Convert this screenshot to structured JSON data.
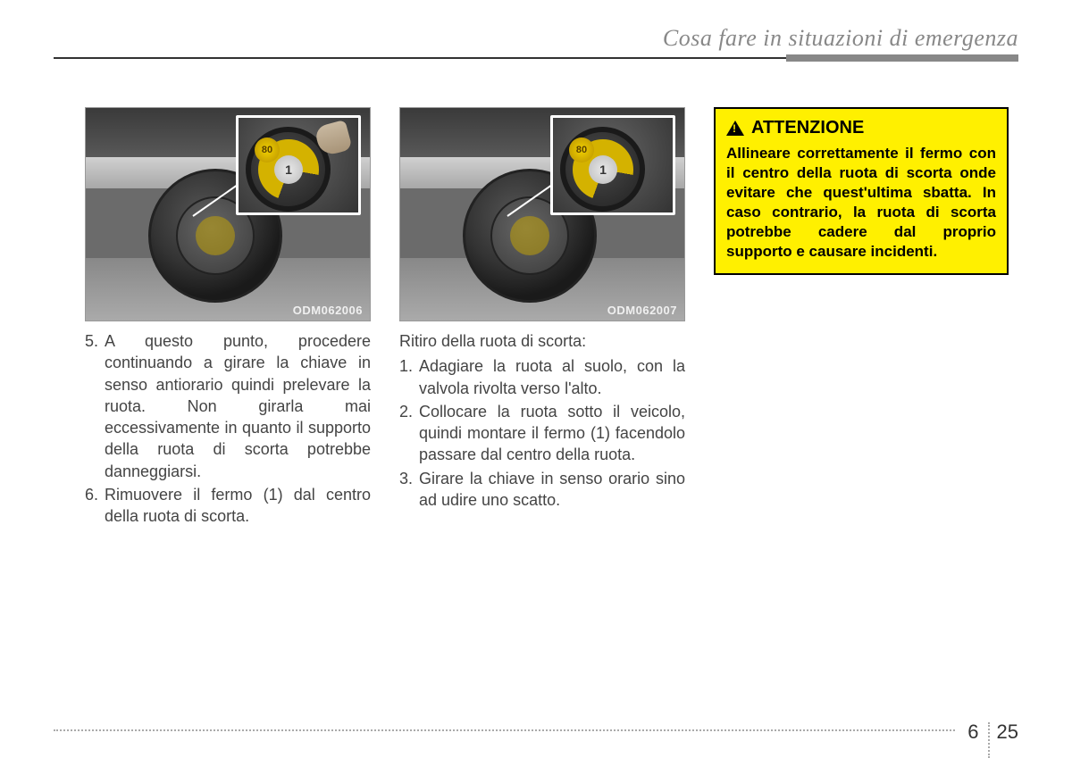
{
  "header": {
    "title": "Cosa fare in situazioni di emergenza"
  },
  "col1": {
    "fig_code": "ODM062006",
    "inset_center": "1",
    "inset_badge": "80",
    "items": [
      {
        "n": "5.",
        "text": "A questo punto, procedere continuando a girare la chiave in senso antiorario quindi prelevare la ruota. Non girarla mai eccessivamente in quanto il supporto della ruota di scorta potrebbe danneggiarsi."
      },
      {
        "n": "6.",
        "text": "Rimuovere il fermo (1) dal centro della ruota di scorta."
      }
    ]
  },
  "col2": {
    "fig_code": "ODM062007",
    "inset_center": "1",
    "inset_badge": "80",
    "intro": "Ritiro della ruota di scorta:",
    "items": [
      {
        "n": "1.",
        "text": "Adagiare la ruota al suolo, con la valvola rivolta verso l'alto."
      },
      {
        "n": "2.",
        "text": "Collocare la ruota sotto il veicolo, quindi montare il fermo (1) facendolo passare dal centro della ruota."
      },
      {
        "n": "3.",
        "text": "Girare la chiave in senso orario sino ad udire uno scatto."
      }
    ]
  },
  "warning": {
    "title": "ATTENZIONE",
    "body": "Allineare correttamente il fermo con il centro della ruota di scorta onde evitare che quest'ultima sbatta. In caso contrario, la ruota di scorta potrebbe cadere dal proprio supporto e causare incidenti."
  },
  "footer": {
    "chapter": "6",
    "page": "25"
  }
}
